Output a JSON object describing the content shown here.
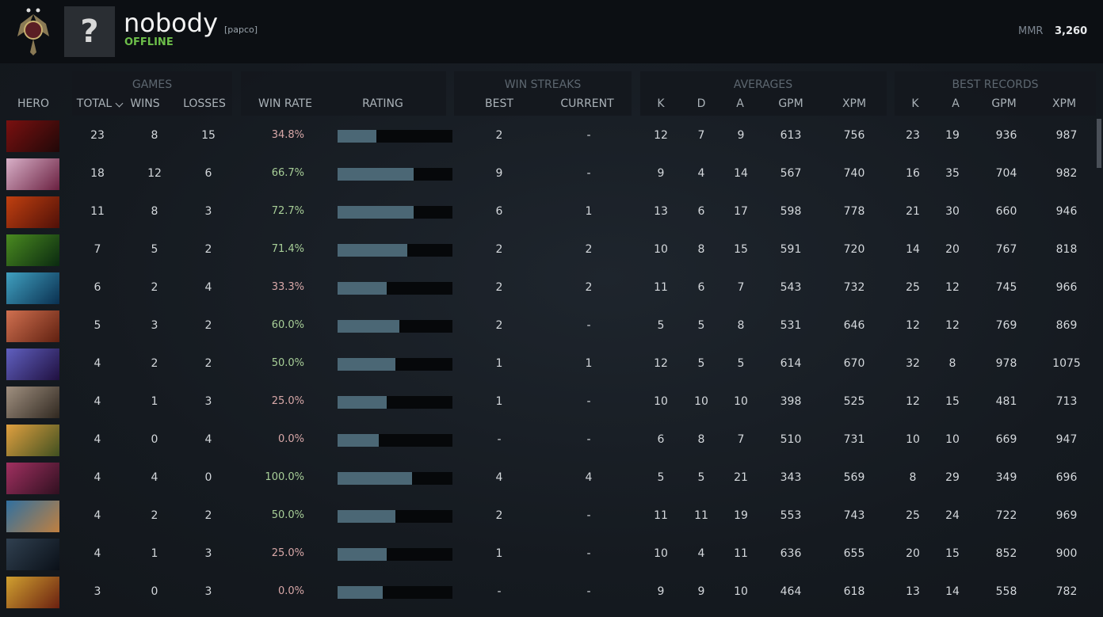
{
  "header": {
    "name": "nobody",
    "tag": "[papco]",
    "status": "OFFLINE",
    "mmr_label": "MMR",
    "mmr": "3,260",
    "avatar": "?"
  },
  "table": {
    "groups": [
      "GAMES",
      "WIN STREAKS",
      "AVERAGES",
      "BEST RECORDS"
    ],
    "columns": [
      "HERO",
      "TOTAL",
      "WINS",
      "LOSSES",
      "WIN RATE",
      "RATING",
      "BEST",
      "CURRENT",
      "K",
      "D",
      "A",
      "GPM",
      "XPM",
      "K",
      "A",
      "GPM",
      "XPM"
    ],
    "rows": [
      {
        "cells": [
          "23",
          "8",
          "15",
          "34.8%",
          "2",
          "-",
          "12",
          "7",
          "9",
          "613",
          "756",
          "23",
          "19",
          "936",
          "987"
        ],
        "rating": 34
      },
      {
        "cells": [
          "18",
          "12",
          "6",
          "66.7%",
          "9",
          "-",
          "9",
          "4",
          "14",
          "567",
          "740",
          "16",
          "35",
          "704",
          "982"
        ],
        "rating": 66
      },
      {
        "cells": [
          "11",
          "8",
          "3",
          "72.7%",
          "6",
          "1",
          "13",
          "6",
          "17",
          "598",
          "778",
          "21",
          "30",
          "660",
          "946"
        ],
        "rating": 66
      },
      {
        "cells": [
          "7",
          "5",
          "2",
          "71.4%",
          "2",
          "2",
          "10",
          "8",
          "15",
          "591",
          "720",
          "14",
          "20",
          "767",
          "818"
        ],
        "rating": 61
      },
      {
        "cells": [
          "6",
          "2",
          "4",
          "33.3%",
          "2",
          "2",
          "11",
          "6",
          "7",
          "543",
          "732",
          "25",
          "12",
          "745",
          "966"
        ],
        "rating": 43
      },
      {
        "cells": [
          "5",
          "3",
          "2",
          "60.0%",
          "2",
          "-",
          "5",
          "5",
          "8",
          "531",
          "646",
          "12",
          "12",
          "769",
          "869"
        ],
        "rating": 54
      },
      {
        "cells": [
          "4",
          "2",
          "2",
          "50.0%",
          "1",
          "1",
          "12",
          "5",
          "5",
          "614",
          "670",
          "32",
          "8",
          "978",
          "1075"
        ],
        "rating": 50
      },
      {
        "cells": [
          "4",
          "1",
          "3",
          "25.0%",
          "1",
          "-",
          "10",
          "10",
          "10",
          "398",
          "525",
          "12",
          "15",
          "481",
          "713"
        ],
        "rating": 43
      },
      {
        "cells": [
          "4",
          "0",
          "4",
          "0.0%",
          "-",
          "-",
          "6",
          "8",
          "7",
          "510",
          "731",
          "10",
          "10",
          "669",
          "947"
        ],
        "rating": 36
      },
      {
        "cells": [
          "4",
          "4",
          "0",
          "100.0%",
          "4",
          "4",
          "5",
          "5",
          "21",
          "343",
          "569",
          "8",
          "29",
          "349",
          "696"
        ],
        "rating": 65
      },
      {
        "cells": [
          "4",
          "2",
          "2",
          "50.0%",
          "2",
          "-",
          "11",
          "11",
          "19",
          "553",
          "743",
          "25",
          "24",
          "722",
          "969"
        ],
        "rating": 50
      },
      {
        "cells": [
          "4",
          "1",
          "3",
          "25.0%",
          "1",
          "-",
          "10",
          "4",
          "11",
          "636",
          "655",
          "20",
          "15",
          "852",
          "900"
        ],
        "rating": 43
      },
      {
        "cells": [
          "3",
          "0",
          "3",
          "0.0%",
          "-",
          "-",
          "9",
          "9",
          "10",
          "464",
          "618",
          "13",
          "14",
          "558",
          "782"
        ],
        "rating": 39
      }
    ]
  }
}
